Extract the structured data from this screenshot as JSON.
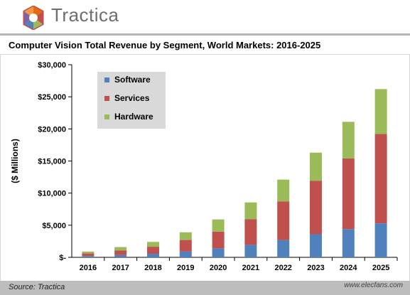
{
  "brand": {
    "name": "Tractica"
  },
  "colors": {
    "software": "#4f81bd",
    "services": "#c0504d",
    "hardware": "#9bbb59",
    "legend_bg": "#d9d9d9",
    "axis": "#000000"
  },
  "source": "Source: Tractica",
  "watermark": "www.elecfans.com",
  "chart_data": {
    "type": "bar",
    "stacked": true,
    "title": "Computer Vision Total Revenue by Segment, World Markets: 2016-2025",
    "xlabel": "",
    "ylabel": "($ Millions)",
    "ylim": [
      0,
      30000
    ],
    "yticks": [
      0,
      5000,
      10000,
      15000,
      20000,
      25000,
      30000
    ],
    "ytick_labels": [
      "$-",
      "$5,000",
      "$10,000",
      "$15,000",
      "$20,000",
      "$25,000",
      "$30,000"
    ],
    "categories": [
      "2016",
      "2017",
      "2018",
      "2019",
      "2020",
      "2021",
      "2022",
      "2023",
      "2024",
      "2025"
    ],
    "series": [
      {
        "name": "Software",
        "values": [
          200,
          350,
          550,
          900,
          1400,
          1950,
          2700,
          3600,
          4400,
          5300
        ]
      },
      {
        "name": "Services",
        "values": [
          400,
          700,
          1100,
          1800,
          2600,
          4000,
          6000,
          8300,
          11000,
          13900
        ]
      },
      {
        "name": "Hardware",
        "values": [
          300,
          550,
          750,
          1200,
          1900,
          2600,
          3400,
          4400,
          5700,
          7000
        ]
      }
    ],
    "legend_position": "top-left",
    "grid": true
  }
}
